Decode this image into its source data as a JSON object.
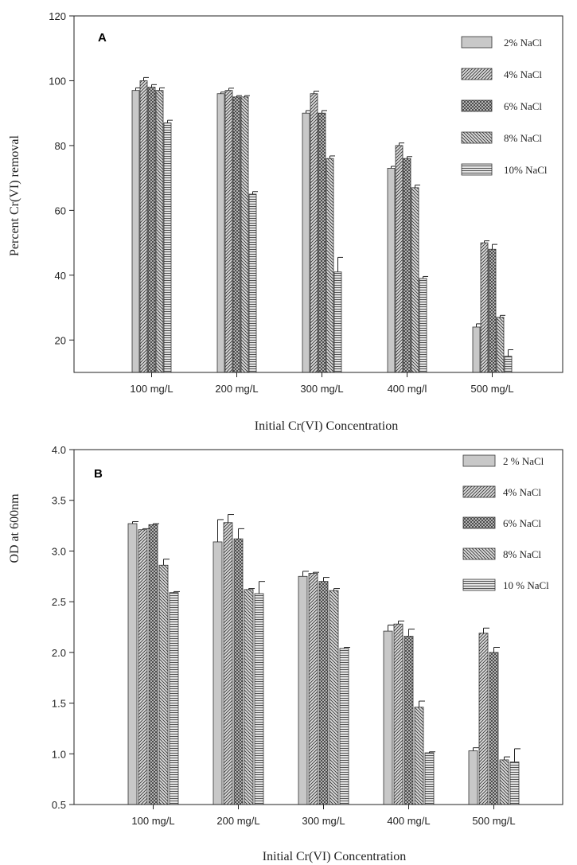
{
  "chart_data": [
    {
      "type": "bar",
      "panel_label": "A",
      "xlabel": "Initial Cr(VI) Concentration",
      "ylabel": "Percent Cr(VI) removal",
      "categories": [
        "100 mg/L",
        "200 mg/L",
        "300 mg/L",
        "400 mg/l",
        "500 mg/L"
      ],
      "ylim": [
        10,
        120
      ],
      "yticks": [
        20,
        40,
        60,
        80,
        100,
        120
      ],
      "ytick_labels": [
        "20",
        "40",
        "60",
        "80",
        "100",
        "120"
      ],
      "grid": false,
      "legend_position": "top-right",
      "series": [
        {
          "name": "2% NaCl",
          "pattern": "solid",
          "values": [
            97,
            96,
            90,
            73,
            24
          ],
          "errors": [
            0.8,
            0.5,
            0.8,
            0.6,
            1.0
          ]
        },
        {
          "name": "4% NaCl",
          "pattern": "diag-right",
          "values": [
            100,
            97,
            96,
            80,
            50
          ],
          "errors": [
            1.0,
            0.7,
            0.8,
            0.8,
            0.6
          ]
        },
        {
          "name": "6% NaCl",
          "pattern": "crosshatch",
          "values": [
            98,
            95,
            90,
            76,
            48
          ],
          "errors": [
            0.8,
            0.4,
            0.8,
            0.6,
            1.5
          ]
        },
        {
          "name": "8% NaCl",
          "pattern": "diag-left",
          "values": [
            97,
            95,
            76,
            67,
            27
          ],
          "errors": [
            0.8,
            0.4,
            0.8,
            0.8,
            0.6
          ]
        },
        {
          "name": "10% NaCl",
          "pattern": "horizontal",
          "values": [
            87,
            65,
            41,
            39,
            15
          ],
          "errors": [
            0.8,
            0.8,
            4.5,
            0.6,
            2.0
          ]
        }
      ]
    },
    {
      "type": "bar",
      "panel_label": "B",
      "xlabel": "Initial Cr(VI) Concentration",
      "ylabel": "OD at 600nm",
      "categories": [
        "100 mg/L",
        "200 mg/L",
        "300 mg/L",
        "400 mg/L",
        "500 mg/L"
      ],
      "ylim": [
        0.5,
        4.0
      ],
      "yticks": [
        0.5,
        1.0,
        1.5,
        2.0,
        2.5,
        3.0,
        3.5,
        4.0
      ],
      "ytick_labels": [
        "0.5",
        "1.0",
        "1.5",
        "2.0",
        "2.5",
        "3.0",
        "3.5",
        "4.0"
      ],
      "grid": false,
      "legend_position": "top-right",
      "series": [
        {
          "name": "2 % NaCl",
          "pattern": "solid",
          "values": [
            3.27,
            3.09,
            2.75,
            2.21,
            1.03
          ],
          "errors": [
            0.02,
            0.22,
            0.05,
            0.06,
            0.03
          ]
        },
        {
          "name": "4% NaCl",
          "pattern": "diag-right",
          "values": [
            3.21,
            3.28,
            2.78,
            2.28,
            2.19
          ],
          "errors": [
            0.01,
            0.08,
            0.01,
            0.03,
            0.05
          ]
        },
        {
          "name": "6% NaCl",
          "pattern": "crosshatch",
          "values": [
            3.26,
            3.12,
            2.7,
            2.16,
            2.0
          ],
          "errors": [
            0.01,
            0.1,
            0.04,
            0.07,
            0.05
          ]
        },
        {
          "name": "8% NaCl",
          "pattern": "diag-left",
          "values": [
            2.86,
            2.62,
            2.61,
            1.46,
            0.94
          ],
          "errors": [
            0.06,
            0.01,
            0.02,
            0.06,
            0.03
          ]
        },
        {
          "name": "10 % NaCl",
          "pattern": "horizontal",
          "values": [
            2.59,
            2.58,
            2.04,
            1.01,
            0.92
          ],
          "errors": [
            0.01,
            0.12,
            0.01,
            0.01,
            0.13
          ]
        }
      ]
    }
  ]
}
